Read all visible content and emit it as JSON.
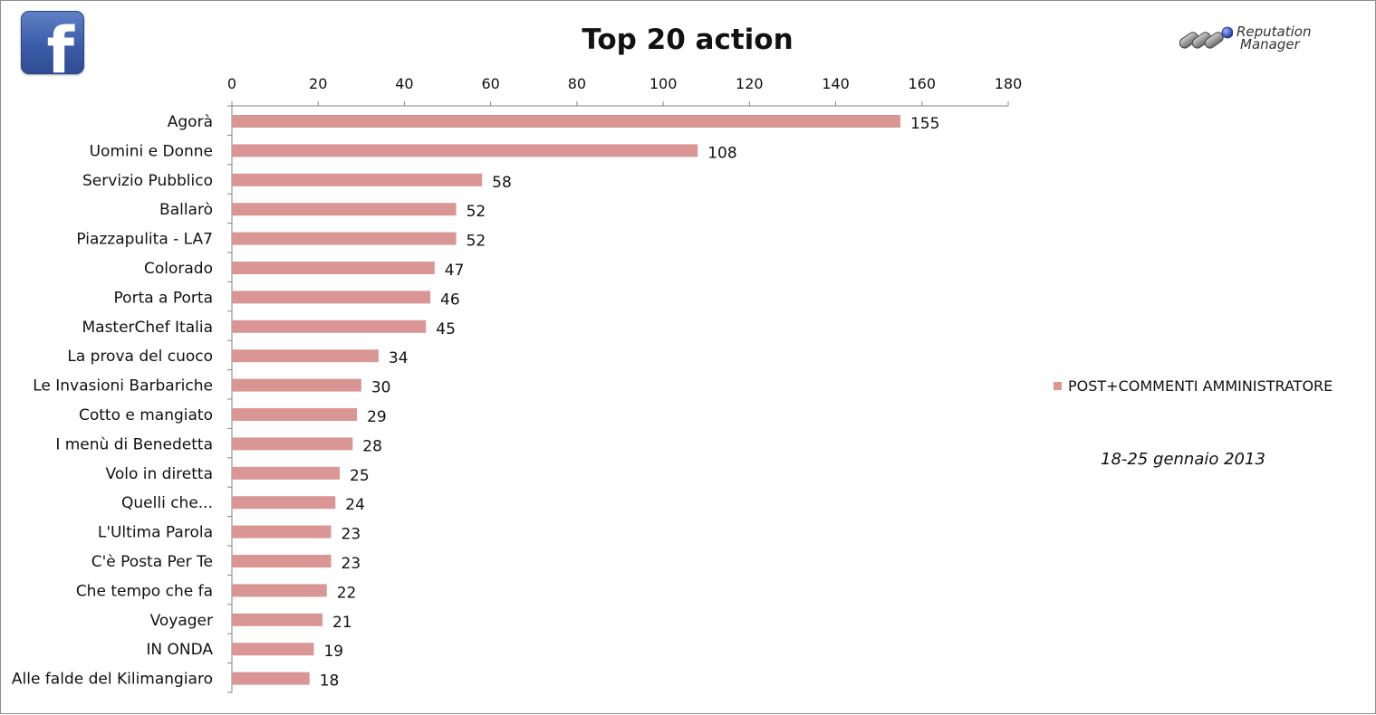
{
  "chart_data": {
    "type": "bar",
    "orientation": "horizontal",
    "title": "Top 20 action",
    "categories": [
      "Agorà",
      "Uomini e Donne",
      "Servizio Pubblico",
      "Ballarò",
      "Piazzapulita - LA7",
      "Colorado",
      "Porta a Porta",
      "MasterChef Italia",
      "La prova del cuoco",
      "Le Invasioni Barbariche",
      "Cotto e mangiato",
      "I menù di Benedetta",
      "Volo in diretta",
      "Quelli che...",
      "L'Ultima Parola",
      "C'è Posta Per Te",
      "Che tempo che fa",
      "Voyager",
      "IN ONDA",
      "Alle falde del Kilimangiaro"
    ],
    "series": [
      {
        "name": "POST+COMMENTI AMMINISTRATORE",
        "values": [
          155,
          108,
          58,
          52,
          52,
          47,
          46,
          45,
          34,
          30,
          29,
          28,
          25,
          24,
          23,
          23,
          22,
          21,
          19,
          18
        ]
      }
    ],
    "xlim": [
      0,
      180
    ],
    "x_ticks": [
      0,
      20,
      40,
      60,
      80,
      100,
      120,
      140,
      160,
      180
    ],
    "x_axis_position": "top",
    "legend_position": "right",
    "grid": false,
    "data_labels": true,
    "bar_color": "#d99694"
  },
  "header": {
    "period": "18-25 gennaio 2013"
  },
  "logos": {
    "facebook": {
      "glyph": "f",
      "color": "#3b5998"
    },
    "reputation_manager": {
      "line1": "Reputation",
      "line2": "Manager"
    }
  }
}
